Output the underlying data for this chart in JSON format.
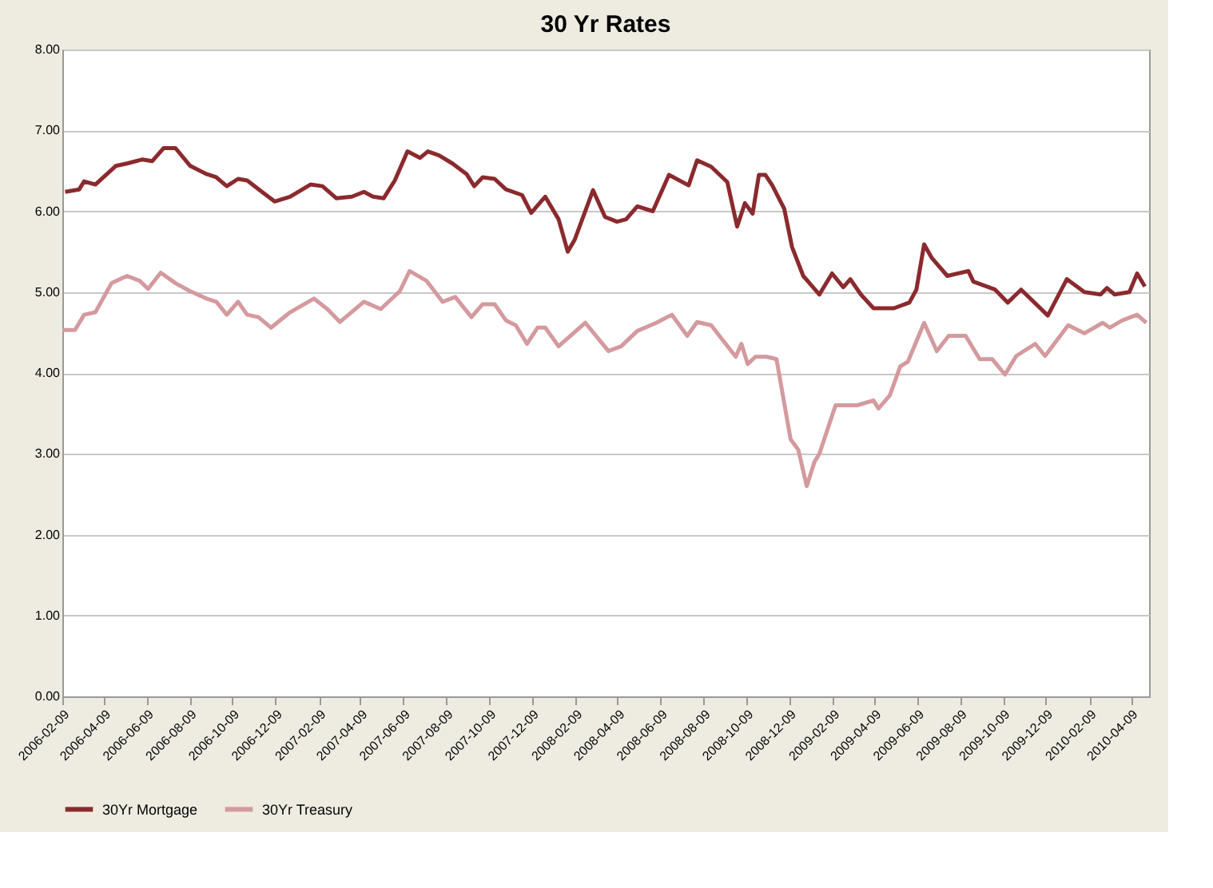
{
  "chart_data": {
    "type": "line",
    "title": "30 Yr Rates",
    "series": [
      {
        "name": "30Yr Mortgage",
        "color": "#8b2a2e",
        "x": [
          "2006-02-13",
          "2006-03-05",
          "2006-03-12",
          "2006-03-28",
          "2006-04-26",
          "2006-05-12",
          "2006-06-03",
          "2006-06-17",
          "2006-07-03",
          "2006-07-20",
          "2006-08-10",
          "2006-09-02",
          "2006-09-16",
          "2006-10-01",
          "2006-10-17",
          "2006-10-30",
          "2006-11-20",
          "2006-12-08",
          "2006-12-30",
          "2007-01-28",
          "2007-02-14",
          "2007-03-06",
          "2007-03-28",
          "2007-04-14",
          "2007-04-27",
          "2007-05-12",
          "2007-05-28",
          "2007-06-15",
          "2007-07-03",
          "2007-07-14",
          "2007-07-30",
          "2007-08-18",
          "2007-09-07",
          "2007-09-18",
          "2007-09-30",
          "2007-10-17",
          "2007-11-02",
          "2007-11-25",
          "2007-12-08",
          "2007-12-28",
          "2008-01-16",
          "2008-01-29",
          "2008-02-08",
          "2008-03-05",
          "2008-03-22",
          "2008-04-08",
          "2008-04-21",
          "2008-05-07",
          "2008-05-29",
          "2008-06-21",
          "2008-07-19",
          "2008-07-31",
          "2008-08-20",
          "2008-09-12",
          "2008-09-26",
          "2008-10-07",
          "2008-10-18",
          "2008-10-27",
          "2008-11-05",
          "2008-11-15",
          "2008-12-02",
          "2008-12-13",
          "2008-12-29",
          "2009-01-21",
          "2009-02-08",
          "2009-02-24",
          "2009-03-06",
          "2009-03-21",
          "2009-04-08",
          "2009-05-07",
          "2009-05-29",
          "2009-06-08",
          "2009-06-19",
          "2009-06-30",
          "2009-07-22",
          "2009-08-21",
          "2009-08-28",
          "2009-09-28",
          "2009-10-16",
          "2009-11-04",
          "2009-12-12",
          "2010-01-08",
          "2010-02-02",
          "2010-02-25",
          "2010-03-06",
          "2010-03-17",
          "2010-04-07",
          "2010-04-18",
          "2010-04-29"
        ],
        "values": [
          6.24,
          6.27,
          6.37,
          6.33,
          6.56,
          6.59,
          6.64,
          6.62,
          6.78,
          6.78,
          6.56,
          6.46,
          6.42,
          6.31,
          6.4,
          6.38,
          6.24,
          6.12,
          6.18,
          6.33,
          6.31,
          6.16,
          6.18,
          6.24,
          6.18,
          6.16,
          6.38,
          6.74,
          6.66,
          6.74,
          6.69,
          6.59,
          6.46,
          6.31,
          6.42,
          6.4,
          6.27,
          6.2,
          5.98,
          6.18,
          5.9,
          5.5,
          5.65,
          6.26,
          5.93,
          5.87,
          5.9,
          6.06,
          6.0,
          6.45,
          6.32,
          6.63,
          6.55,
          6.36,
          5.81,
          6.1,
          5.97,
          6.45,
          6.45,
          6.32,
          6.03,
          5.56,
          5.2,
          4.97,
          5.23,
          5.06,
          5.16,
          4.97,
          4.8,
          4.8,
          4.87,
          5.03,
          5.59,
          5.42,
          5.2,
          5.26,
          5.13,
          5.03,
          4.87,
          5.03,
          4.71,
          5.16,
          5.0,
          4.97,
          5.05,
          4.97,
          5.0,
          5.23,
          5.07
        ]
      },
      {
        "name": "30Yr Treasury",
        "color": "#d49a9e",
        "x": [
          "2006-02-09",
          "2006-02-27",
          "2006-03-12",
          "2006-03-28",
          "2006-04-20",
          "2006-05-12",
          "2006-05-30",
          "2006-06-11",
          "2006-06-29",
          "2006-07-20",
          "2006-08-10",
          "2006-09-02",
          "2006-09-16",
          "2006-10-01",
          "2006-10-17",
          "2006-10-30",
          "2006-11-15",
          "2006-12-03",
          "2006-12-30",
          "2007-02-02",
          "2007-02-21",
          "2007-03-11",
          "2007-04-14",
          "2007-05-08",
          "2007-06-04",
          "2007-06-18",
          "2007-07-12",
          "2007-08-04",
          "2007-08-22",
          "2007-09-14",
          "2007-09-30",
          "2007-10-17",
          "2007-11-02",
          "2007-11-16",
          "2007-12-02",
          "2007-12-17",
          "2007-12-28",
          "2008-01-16",
          "2008-02-23",
          "2008-03-27",
          "2008-04-14",
          "2008-05-07",
          "2008-06-03",
          "2008-06-25",
          "2008-07-17",
          "2008-07-31",
          "2008-08-20",
          "2008-09-24",
          "2008-10-02",
          "2008-10-11",
          "2008-10-22",
          "2008-11-07",
          "2008-11-21",
          "2008-12-11",
          "2008-12-22",
          "2009-01-03",
          "2009-01-14",
          "2009-01-21",
          "2009-02-13",
          "2009-03-16",
          "2009-04-08",
          "2009-04-15",
          "2009-05-01",
          "2009-05-16",
          "2009-05-27",
          "2009-06-19",
          "2009-07-07",
          "2009-07-24",
          "2009-08-17",
          "2009-09-06",
          "2009-09-24",
          "2009-10-12",
          "2009-10-28",
          "2009-11-24",
          "2009-12-08",
          "2010-01-10",
          "2010-02-02",
          "2010-02-28",
          "2010-03-10",
          "2010-03-28",
          "2010-04-18",
          "2010-05-01"
        ],
        "values": [
          4.53,
          4.53,
          4.72,
          4.75,
          5.11,
          5.2,
          5.14,
          5.04,
          5.24,
          5.11,
          5.01,
          4.92,
          4.88,
          4.72,
          4.88,
          4.72,
          4.69,
          4.56,
          4.75,
          4.92,
          4.79,
          4.63,
          4.88,
          4.79,
          5.01,
          5.26,
          5.14,
          4.88,
          4.94,
          4.69,
          4.85,
          4.85,
          4.65,
          4.59,
          4.36,
          4.56,
          4.56,
          4.33,
          4.62,
          4.27,
          4.33,
          4.52,
          4.62,
          4.72,
          4.46,
          4.63,
          4.59,
          4.2,
          4.36,
          4.11,
          4.2,
          4.2,
          4.17,
          3.18,
          3.05,
          2.6,
          2.9,
          3.0,
          3.6,
          3.6,
          3.66,
          3.56,
          3.72,
          4.08,
          4.14,
          4.62,
          4.27,
          4.46,
          4.46,
          4.17,
          4.17,
          3.98,
          4.21,
          4.36,
          4.21,
          4.59,
          4.49,
          4.62,
          4.56,
          4.65,
          4.72,
          4.62
        ]
      }
    ],
    "xlim": [
      "2006-02-09",
      "2010-05-05"
    ],
    "xticks": [
      "2006-02-09",
      "2006-04-09",
      "2006-06-09",
      "2006-08-09",
      "2006-10-09",
      "2006-12-09",
      "2007-02-09",
      "2007-04-09",
      "2007-06-09",
      "2007-08-09",
      "2007-10-09",
      "2007-12-09",
      "2008-02-09",
      "2008-04-09",
      "2008-06-09",
      "2008-08-09",
      "2008-10-09",
      "2008-12-09",
      "2009-02-09",
      "2009-04-09",
      "2009-06-09",
      "2009-08-09",
      "2009-10-09",
      "2009-12-09",
      "2010-02-09",
      "2010-04-09"
    ],
    "ylim": [
      0,
      8
    ],
    "yticks": [
      {
        "value": 0,
        "label": "0.00"
      },
      {
        "value": 1,
        "label": "1.00"
      },
      {
        "value": 2,
        "label": "2.00"
      },
      {
        "value": 3,
        "label": "3.00"
      },
      {
        "value": 4,
        "label": "4.00"
      },
      {
        "value": 5,
        "label": "5.00"
      },
      {
        "value": 6,
        "label": "6.00"
      },
      {
        "value": 7,
        "label": "7.00"
      },
      {
        "value": 8,
        "label": "8.00"
      }
    ],
    "grid": "y",
    "legend": "bottom",
    "marker": "none",
    "line_style": "solid"
  }
}
